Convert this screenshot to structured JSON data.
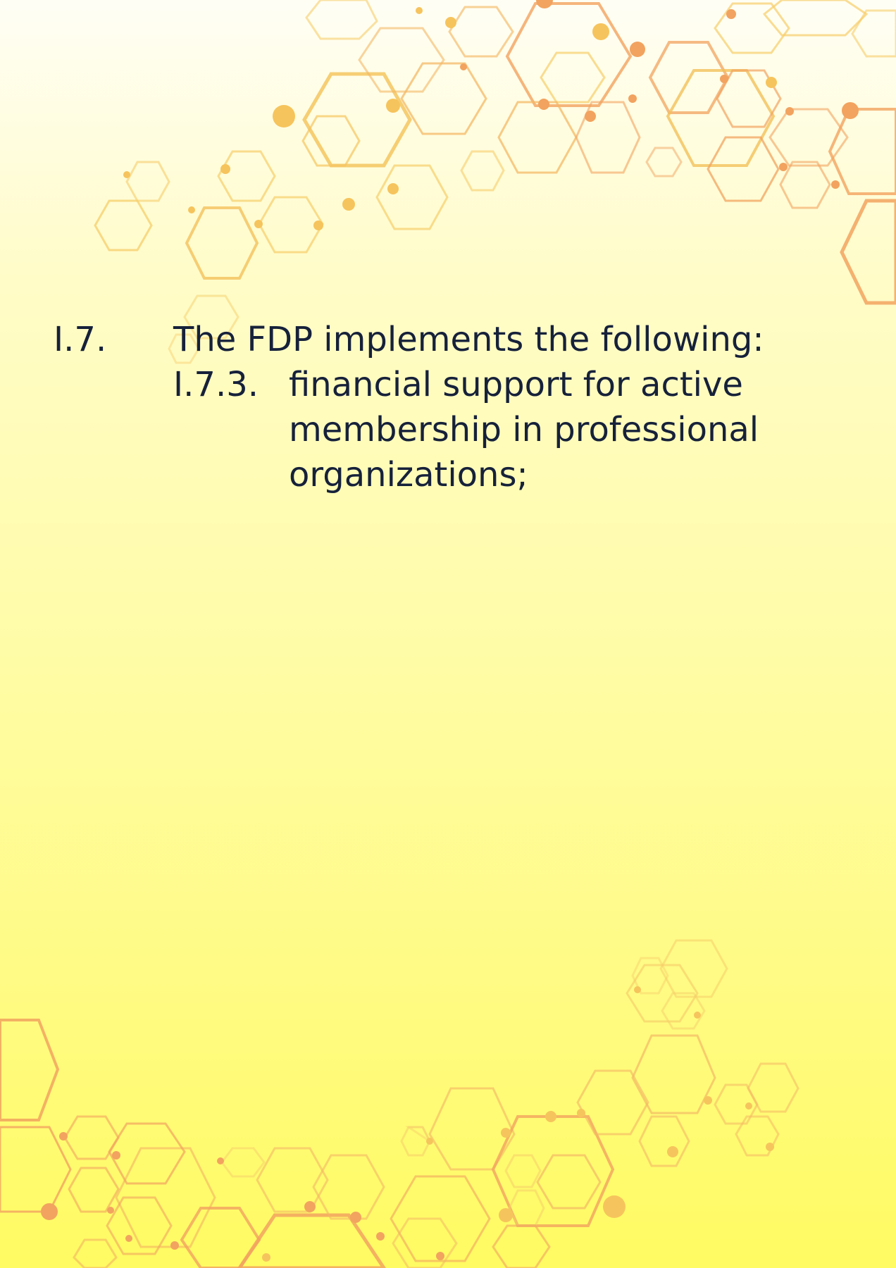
{
  "document": {
    "clause": {
      "number": "I.7.",
      "heading": "The FDP implements the following:"
    },
    "subclause": {
      "number": "I.7.3.",
      "text": "financial support for active membership in professional organizations;"
    }
  },
  "colors": {
    "text": "#16213a",
    "hex_orange": "#f2a35f",
    "hex_gold": "#f7c862",
    "background_top": "#fffef5",
    "background_bottom": "#fffb62"
  },
  "decorations": {
    "top_pattern": "hexagon-network",
    "bottom_pattern": "hexagon-network"
  }
}
